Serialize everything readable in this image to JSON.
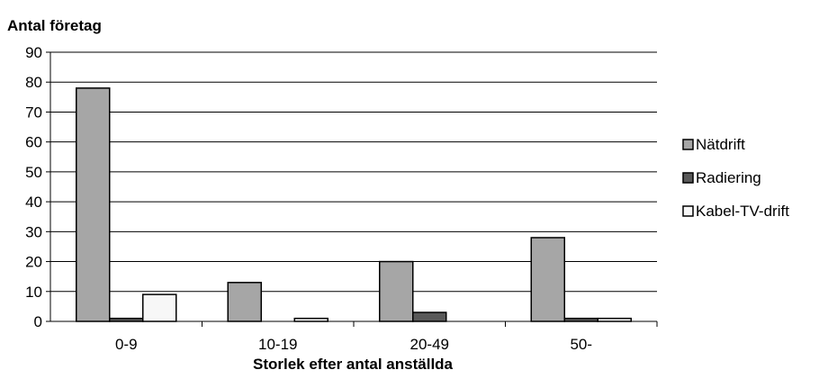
{
  "chart_data": {
    "type": "bar",
    "ylabel": "Antal företag",
    "xlabel": "Storlek efter antal anställda",
    "categories": [
      "0-9",
      "10-19",
      "20-49",
      "50-"
    ],
    "ylim": [
      0,
      90
    ],
    "yticks": [
      0,
      10,
      20,
      30,
      40,
      50,
      60,
      70,
      80,
      90
    ],
    "grid": true,
    "legend_position": "right",
    "series": [
      {
        "name": "Nätdrift",
        "values": [
          78,
          13,
          20,
          28
        ],
        "color": "#a6a6a6"
      },
      {
        "name": "Radiering",
        "values": [
          1,
          0,
          3,
          1
        ],
        "color": "#595959"
      },
      {
        "name": "Kabel-TV-drift",
        "values": [
          9,
          1,
          0,
          1
        ],
        "color": "#f7f7f7"
      }
    ]
  }
}
